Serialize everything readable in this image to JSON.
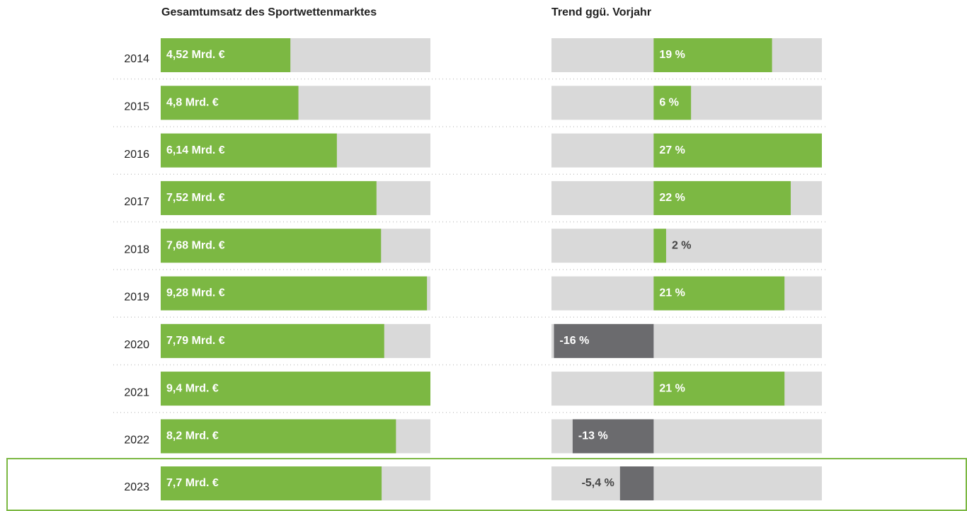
{
  "chart_data": [
    {
      "type": "bar",
      "orientation": "horizontal",
      "title": "Gesamtumsatz des Sportwettenmarktes",
      "categories": [
        "2014",
        "2015",
        "2016",
        "2017",
        "2018",
        "2019",
        "2020",
        "2021",
        "2022",
        "2023"
      ],
      "values": [
        4.52,
        4.8,
        6.14,
        7.52,
        7.68,
        9.28,
        7.79,
        9.4,
        8.2,
        7.7
      ],
      "value_labels": [
        "4,52 Mrd. €",
        "4,8 Mrd. €",
        "6,14 Mrd. €",
        "7,52 Mrd. €",
        "7,68 Mrd. €",
        "9,28 Mrd. €",
        "7,79 Mrd. €",
        "9,4 Mrd. €",
        "8,2 Mrd. €",
        "7,7 Mrd. €"
      ],
      "xlim": [
        0,
        9.4
      ],
      "color": "#7cb843"
    },
    {
      "type": "bar",
      "orientation": "horizontal",
      "title": "Trend ggü. Vorjahr",
      "values": [
        19,
        6,
        27,
        22,
        2,
        21,
        -16,
        21,
        -13,
        -5.4
      ],
      "value_labels": [
        "19 %",
        "6 %",
        "27 %",
        "22 %",
        "2 %",
        "21 %",
        "-16 %",
        "21 %",
        "-13 %",
        "-5,4 %"
      ],
      "xlim": [
        -16.4,
        27
      ],
      "color": "#7cb843",
      "negative_color": "#6b6b6e"
    }
  ]
}
